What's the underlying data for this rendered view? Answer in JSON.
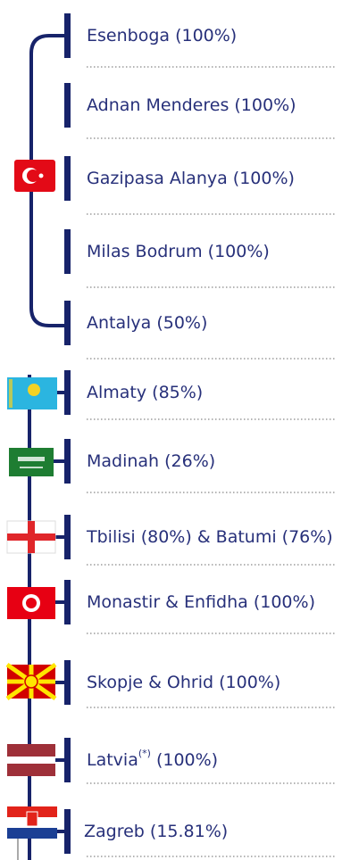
{
  "items": [
    {
      "label": "Esenboga (100%)"
    },
    {
      "label": "Adnan Menderes (100%)"
    },
    {
      "label": "Gazipasa Alanya (100%)"
    },
    {
      "label": "Milas Bodrum (100%)"
    },
    {
      "label": "Antalya (50%)"
    },
    {
      "label": "Almaty (85%)"
    },
    {
      "label": "Madinah (26%)"
    },
    {
      "label": "Tbilisi (80%) & Batumi (76%)"
    },
    {
      "label": "Monastir & Enfidha (100%)"
    },
    {
      "label": "Skopje & Ohrid (100%)"
    },
    {
      "label": "Latvia",
      "note": "(*)",
      "rest": "(100%)"
    },
    {
      "label": "Zagreb (15.81%)"
    }
  ]
}
